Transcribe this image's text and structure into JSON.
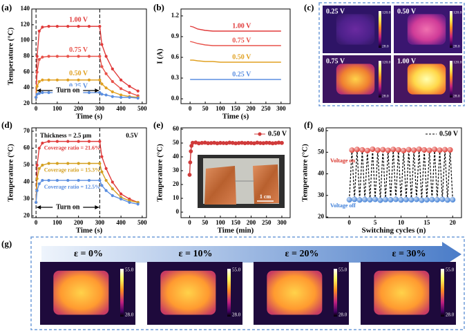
{
  "panel_labels": [
    "(a)",
    "(b)",
    "(c)",
    "(d)",
    "(e)",
    "(f)",
    "(g)"
  ],
  "thermal_images": {
    "labels": [
      "0.25 V",
      "0.50 V",
      "0.75 V",
      "1.00 V"
    ],
    "cbar_max": "120.0",
    "cbar_min": "28.0"
  },
  "strain_images": {
    "labels": [
      "ε = 0%",
      "ε = 10%",
      "ε = 20%",
      "ε = 30%"
    ],
    "cbar_max": "55.0",
    "cbar_min": "28.0"
  },
  "inset_scale": "1 cm",
  "chart_data": [
    {
      "type": "line",
      "xlabel": "Time (s)",
      "ylabel": "Temperature (°C)",
      "xlim": [
        -20,
        520
      ],
      "ylim": [
        20,
        140
      ],
      "xticks": [
        0,
        100,
        200,
        300,
        400,
        500
      ],
      "yticks": [
        20,
        40,
        60,
        80,
        100,
        120,
        140
      ],
      "vlines": [
        0,
        300
      ],
      "series_labels": true,
      "markers": true,
      "annotations": [
        {
          "text": "Turn on"
        }
      ],
      "x": [
        0,
        5,
        15,
        30,
        60,
        100,
        150,
        200,
        250,
        300,
        310,
        330,
        360,
        400,
        440,
        480
      ],
      "series": [
        {
          "name": "1.00 V",
          "color": "#e03a3a",
          "values": [
            28,
            80,
            112,
            117,
            118,
            118,
            118,
            118,
            118,
            118,
            95,
            80,
            64,
            50,
            42,
            36
          ]
        },
        {
          "name": "0.75 V",
          "color": "#e8524a",
          "values": [
            28,
            60,
            76,
            79,
            80,
            80,
            80,
            80,
            80,
            80,
            67,
            58,
            48,
            39,
            34,
            30
          ]
        },
        {
          "name": "0.50 V",
          "color": "#e0a020",
          "values": [
            28,
            42,
            48,
            50,
            50,
            50,
            50,
            50,
            50,
            50,
            45,
            40,
            35,
            31,
            29,
            28
          ]
        },
        {
          "name": "0.25 V",
          "color": "#5a8ee0",
          "values": [
            28,
            32,
            33,
            34,
            34,
            34,
            34,
            34,
            34,
            34,
            32,
            31,
            29,
            28,
            28,
            27
          ]
        }
      ]
    },
    {
      "type": "line",
      "xlabel": "Time (s)",
      "ylabel": "I (A)",
      "xlim": [
        -30,
        330
      ],
      "ylim": [
        -0.07,
        1.3
      ],
      "xticks": [
        0,
        50,
        100,
        150,
        200,
        250,
        300
      ],
      "yticks": [
        {
          "value": 0,
          "label": "0.0"
        },
        0.3,
        0.6,
        0.9,
        1.2
      ],
      "series_labels": true,
      "markers": false,
      "x": [
        0,
        10,
        25,
        50,
        75,
        100,
        150,
        200,
        250,
        300
      ],
      "series": [
        {
          "name": "1.00 V",
          "color": "#e03a3a",
          "values": [
            1.05,
            1.04,
            1.01,
            0.99,
            0.98,
            0.98,
            0.98,
            0.98,
            0.98,
            0.98
          ]
        },
        {
          "name": "0.75 V",
          "color": "#e8524a",
          "values": [
            0.83,
            0.82,
            0.8,
            0.78,
            0.77,
            0.77,
            0.77,
            0.77,
            0.77,
            0.77
          ]
        },
        {
          "name": "0.50 V",
          "color": "#e0a020",
          "values": [
            0.56,
            0.56,
            0.55,
            0.54,
            0.54,
            0.53,
            0.53,
            0.53,
            0.53,
            0.53
          ]
        },
        {
          "name": "0.25 V",
          "color": "#5a8ee0",
          "values": [
            0.28,
            0.28,
            0.28,
            0.28,
            0.28,
            0.28,
            0.28,
            0.28,
            0.28,
            0.28
          ]
        }
      ]
    },
    {
      "type": "line",
      "xlabel": "Time (s)",
      "ylabel": "Temperature (°C)",
      "xlim": [
        -20,
        520
      ],
      "ylim": [
        19,
        72
      ],
      "xticks": [
        0,
        100,
        200,
        300,
        400,
        500
      ],
      "yticks": [
        20,
        30,
        40,
        50,
        60,
        70
      ],
      "vlines": [
        0,
        300
      ],
      "series_labels": true,
      "markers": true,
      "annotations": [
        {
          "text": "Turn on"
        },
        {
          "text": "Thickness = 2.5 µm"
        },
        {
          "text": "0.5V"
        }
      ],
      "x": [
        0,
        5,
        15,
        30,
        60,
        100,
        150,
        200,
        250,
        300,
        310,
        330,
        360,
        400,
        440,
        480
      ],
      "series": [
        {
          "name": "Coverage ratio = 21.6%",
          "color": "#e03a3a",
          "values": [
            28,
            50,
            60,
            63,
            64,
            64,
            64,
            64,
            64,
            64,
            55,
            48,
            40,
            33,
            30,
            28
          ]
        },
        {
          "name": "Coverage ratio = 15.3%",
          "color": "#d4a020",
          "values": [
            28,
            42,
            48,
            50,
            51,
            51,
            51,
            51,
            51,
            51,
            46,
            41,
            36,
            31,
            29,
            28
          ]
        },
        {
          "name": "Coverage ratio = 12.5%",
          "color": "#5a8ee0",
          "values": [
            28,
            35,
            39,
            41,
            41,
            41,
            41,
            41,
            41,
            41,
            38,
            35,
            32,
            30,
            28,
            27
          ]
        }
      ]
    },
    {
      "type": "line",
      "xlabel": "Time (min)",
      "ylabel": "Temperature (°C)",
      "xlim": [
        -28,
        327
      ],
      "ylim": [
        -4,
        61
      ],
      "xticks": [
        0,
        50,
        100,
        150,
        200,
        250,
        300
      ],
      "yticks": [
        0,
        10,
        20,
        30,
        40,
        50,
        60
      ],
      "legend": "upper right",
      "markers": true,
      "x": [
        0,
        2,
        4,
        6,
        10,
        20,
        30,
        40,
        50,
        60,
        70,
        80,
        90,
        100,
        110,
        120,
        130,
        140,
        150,
        160,
        170,
        180,
        190,
        200,
        210,
        220,
        230,
        240,
        250,
        260,
        270,
        280,
        290,
        300
      ],
      "series": [
        {
          "name": "0.50 V",
          "color": "#d03a3a",
          "values": [
            27,
            36,
            44,
            48,
            50.2,
            50.4,
            49.8,
            50.1,
            50.3,
            49.9,
            50.0,
            50.2,
            49.8,
            50.1,
            50.0,
            49.9,
            50.3,
            50.1,
            49.8,
            50.0,
            50.2,
            49.9,
            50.1,
            50.0,
            49.8,
            50.3,
            50.0,
            49.9,
            50.2,
            50.1,
            49.8,
            50.0,
            50.3,
            50.1
          ]
        }
      ]
    },
    {
      "type": "line",
      "xlabel": "Switching cycles (n)",
      "ylabel": "Temperature (°C)",
      "xlim": [
        -4.5,
        21.7
      ],
      "ylim": [
        19.7,
        61.3
      ],
      "xticks": [
        0,
        5,
        10,
        15,
        20
      ],
      "yticks": [
        20,
        30,
        40,
        50,
        60
      ],
      "legend": "upper right",
      "markers": true,
      "dashed": true,
      "point_colors": [
        "#4a86d8",
        "#e0413a"
      ],
      "annotations": [
        {
          "text": "Voltage on",
          "color": "#d9342b"
        },
        {
          "text": "Voltage off",
          "color": "#3b7dd8"
        }
      ],
      "x": [
        0,
        0.5,
        1,
        1.5,
        2,
        2.5,
        3,
        3.5,
        4,
        4.5,
        5,
        5.5,
        6,
        6.5,
        7,
        7.5,
        8,
        8.5,
        9,
        9.5,
        10,
        10.5,
        11,
        11.5,
        12,
        12.5,
        13,
        13.5,
        14,
        14.5,
        15,
        15.5,
        16,
        16.5,
        17,
        17.5,
        18,
        18.5,
        19,
        19.5,
        20
      ],
      "series": [
        {
          "name": "0.50 V",
          "color": "#000000",
          "values": [
            28,
            51,
            28.2,
            51.3,
            27.9,
            51.1,
            28.1,
            50.8,
            28,
            51.4,
            28.2,
            51,
            27.8,
            51.2,
            28.1,
            50.9,
            28,
            51.3,
            28.2,
            51.1,
            27.9,
            50.8,
            28.1,
            51.2,
            28,
            51,
            28.2,
            51.4,
            27.8,
            51.1,
            28,
            50.9,
            28.1,
            51.3,
            28,
            51,
            28.2,
            51.2,
            27.9,
            51.1,
            28
          ]
        }
      ]
    }
  ]
}
